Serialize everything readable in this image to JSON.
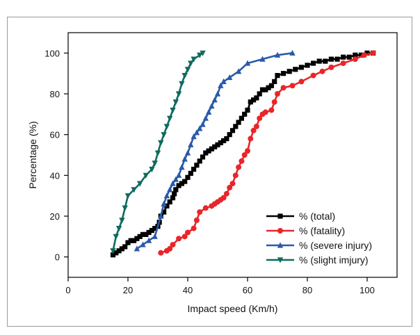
{
  "chart_data": {
    "type": "line",
    "title": "",
    "xlabel": "Impact speed (Km/h)",
    "ylabel": "Percentage (%)",
    "xlim": [
      0,
      110
    ],
    "ylim": [
      -10,
      110
    ],
    "xticks": [
      0,
      20,
      40,
      60,
      80,
      100
    ],
    "yticks": [
      0,
      20,
      40,
      60,
      80,
      100
    ],
    "grid": false,
    "legend_position": "bottom-right",
    "series": [
      {
        "name": "% (total)",
        "color": "#000000",
        "marker": "square",
        "x": [
          15,
          16,
          17,
          18,
          19,
          20,
          21,
          22,
          23,
          24,
          25,
          26,
          27,
          28,
          29,
          30,
          30.5,
          31,
          32,
          33,
          34,
          35,
          35.5,
          36,
          37,
          38,
          39,
          40,
          41,
          42,
          43,
          44,
          45,
          46,
          47,
          48,
          49,
          50,
          51,
          52,
          53,
          54,
          55,
          56,
          57,
          58,
          59,
          60,
          61,
          62,
          63,
          64,
          65,
          66,
          67,
          68,
          69,
          70,
          72,
          74,
          76,
          78,
          80,
          82,
          84,
          86,
          88,
          90,
          92,
          94,
          96,
          98,
          100,
          102
        ],
        "y": [
          1,
          2,
          3,
          4,
          5,
          7,
          8,
          8,
          9,
          10,
          11,
          11,
          12,
          13,
          14,
          15,
          17,
          20,
          22,
          25,
          27,
          29,
          31,
          33,
          35,
          36,
          37,
          39,
          41,
          43,
          45,
          47,
          49,
          51,
          52,
          53,
          54,
          55,
          56,
          57,
          58,
          60,
          62,
          64,
          66,
          68,
          70,
          72,
          76,
          77,
          78,
          80,
          82,
          82,
          83,
          84,
          86,
          89,
          90,
          91,
          92,
          93,
          94,
          95,
          96,
          96,
          97,
          97,
          98,
          98,
          99,
          99,
          100,
          100
        ]
      },
      {
        "name": "% (fatality)",
        "color": "#e8262a",
        "marker": "circle",
        "x": [
          31,
          33,
          34,
          35,
          37,
          39,
          40,
          42,
          43,
          44,
          46,
          48,
          49,
          50,
          51,
          52,
          53,
          54,
          55,
          56,
          57,
          58,
          59,
          60,
          61,
          62,
          63,
          64,
          65,
          66,
          68,
          69,
          70,
          72,
          75,
          78,
          82,
          85,
          88,
          92,
          96,
          99,
          102
        ],
        "y": [
          2,
          3,
          4,
          6,
          9,
          10,
          12,
          14,
          18,
          22,
          24,
          25,
          26,
          27,
          28,
          29,
          31,
          34,
          36,
          40,
          44,
          47,
          50,
          52,
          58,
          62,
          64,
          68,
          70,
          71,
          72,
          76,
          80,
          83,
          84,
          86,
          89,
          91,
          93,
          95,
          97,
          99,
          100
        ]
      },
      {
        "name": "% (severe injury)",
        "color": "#2a5aa8",
        "marker": "triangle",
        "x": [
          23,
          25,
          27,
          29,
          31,
          32,
          33,
          34,
          35,
          36,
          37,
          38,
          39,
          40,
          41,
          42,
          43,
          44,
          45,
          46,
          47,
          48,
          49,
          50,
          51,
          52,
          54,
          57,
          60,
          65,
          70,
          75
        ],
        "y": [
          4,
          6,
          8,
          10,
          20,
          26,
          30,
          33,
          36,
          38,
          40,
          44,
          48,
          51,
          55,
          59,
          61,
          63,
          65,
          68,
          71,
          74,
          77,
          80,
          84,
          86,
          88,
          91,
          95,
          97,
          99,
          100
        ]
      },
      {
        "name": "% (slight imjury)",
        "color": "#0f6b5e",
        "marker": "triangle-down",
        "x": [
          15,
          16,
          17,
          18,
          19,
          20,
          22,
          24,
          26,
          28,
          29,
          30,
          31,
          32,
          33,
          34,
          35,
          36,
          37,
          38,
          39,
          40,
          41,
          42,
          44,
          45
        ],
        "y": [
          3,
          10,
          14,
          18,
          24,
          30,
          33,
          36,
          40,
          43,
          46,
          51,
          56,
          60,
          64,
          68,
          72,
          76,
          80,
          85,
          89,
          92,
          95,
          97,
          99,
          100
        ]
      }
    ]
  }
}
